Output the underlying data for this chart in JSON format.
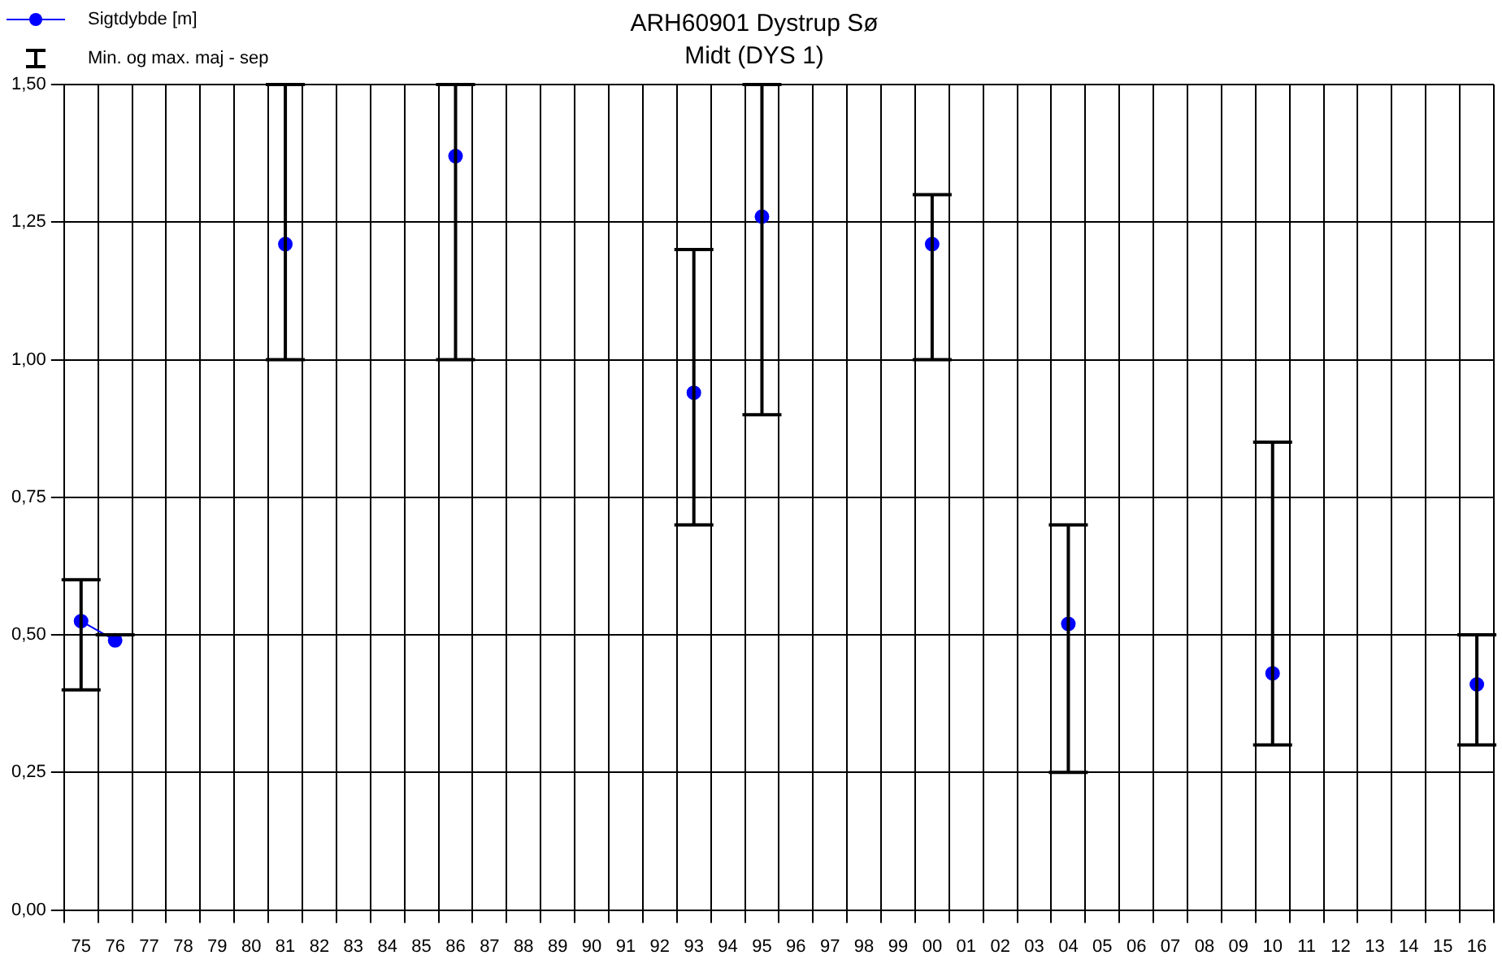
{
  "chart_data": {
    "type": "line",
    "title": "ARH60901 Dystrup Sø",
    "subtitle": "Midt (DYS 1)",
    "categories": [
      "75",
      "76",
      "77",
      "78",
      "79",
      "80",
      "81",
      "82",
      "83",
      "84",
      "85",
      "86",
      "87",
      "88",
      "89",
      "90",
      "91",
      "92",
      "93",
      "94",
      "95",
      "96",
      "97",
      "98",
      "99",
      "00",
      "01",
      "02",
      "03",
      "04",
      "05",
      "06",
      "07",
      "08",
      "09",
      "10",
      "11",
      "12",
      "13",
      "14",
      "15",
      "16"
    ],
    "series": [
      {
        "name": "Sigtdybde [m]",
        "color": "#0000ff",
        "values": [
          0.525,
          0.49,
          null,
          null,
          null,
          null,
          1.21,
          null,
          null,
          null,
          null,
          1.37,
          null,
          null,
          null,
          null,
          null,
          null,
          0.94,
          null,
          1.26,
          null,
          null,
          null,
          null,
          1.21,
          null,
          null,
          null,
          0.52,
          null,
          null,
          null,
          null,
          null,
          0.43,
          null,
          null,
          null,
          null,
          null,
          0.41
        ],
        "errors": [
          [
            0.4,
            0.6
          ],
          [
            0.5,
            0.5
          ],
          null,
          null,
          null,
          null,
          [
            1.0,
            1.5
          ],
          null,
          null,
          null,
          null,
          [
            1.0,
            1.5
          ],
          null,
          null,
          null,
          null,
          null,
          null,
          [
            0.7,
            1.2
          ],
          null,
          [
            0.9,
            1.5
          ],
          null,
          null,
          null,
          null,
          [
            1.0,
            1.3
          ],
          null,
          null,
          null,
          [
            0.25,
            0.7
          ],
          null,
          null,
          null,
          null,
          null,
          [
            0.3,
            0.85
          ],
          null,
          null,
          null,
          null,
          null,
          [
            0.3,
            0.5
          ]
        ]
      }
    ],
    "ylim": [
      0,
      1.5
    ],
    "yticks": [
      {
        "value": 0,
        "label": "0,00"
      },
      {
        "value": 0.25,
        "label": "0,25"
      },
      {
        "value": 0.5,
        "label": "0,50"
      },
      {
        "value": 0.75,
        "label": "0,75"
      },
      {
        "value": 1,
        "label": "1,00"
      },
      {
        "value": 1.25,
        "label": "1,25"
      },
      {
        "value": 1.5,
        "label": "1,50"
      }
    ],
    "grid": true,
    "legend": "top left",
    "marker": "circle",
    "line_style": "solid",
    "annotations": [
      "Min. og max. maj - sep"
    ]
  }
}
